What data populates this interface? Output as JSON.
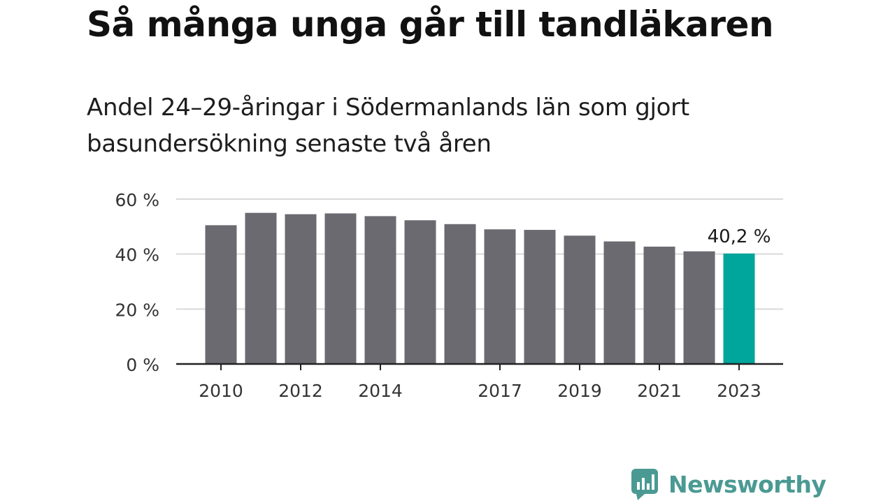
{
  "title": "Så många unga går till tandläkaren",
  "subtitle": "Andel 24–29-åringar i Södermanlands län som gjort basundersökning senaste två åren",
  "brand": {
    "name": "Newsworthy",
    "icon": "newsworthy-logo-icon",
    "color": "#4a9a93"
  },
  "chart_data": {
    "type": "bar",
    "categories": [
      "2010",
      "2011",
      "2012",
      "2013",
      "2014",
      "2015",
      "2016",
      "2017",
      "2018",
      "2019",
      "2020",
      "2021",
      "2022",
      "2023"
    ],
    "tick_labels": [
      "2010",
      "2012",
      "2014",
      "2017",
      "2019",
      "2021",
      "2023"
    ],
    "values": [
      50.5,
      55.0,
      54.5,
      54.8,
      53.8,
      52.3,
      50.9,
      49.0,
      48.8,
      46.7,
      44.6,
      42.7,
      41.0,
      40.2
    ],
    "ylim": [
      0,
      60
    ],
    "yticks": [
      0,
      20,
      40,
      60
    ],
    "ytick_labels": [
      "0 %",
      "20 %",
      "40 %",
      "60 %"
    ],
    "annotation": {
      "category": "2023",
      "label": "40,2 %"
    },
    "grid": true,
    "colors": {
      "bar": "#6c6a71",
      "highlight": "#00a59b",
      "grid": "#d9d9d9",
      "axis": "#222222"
    }
  }
}
